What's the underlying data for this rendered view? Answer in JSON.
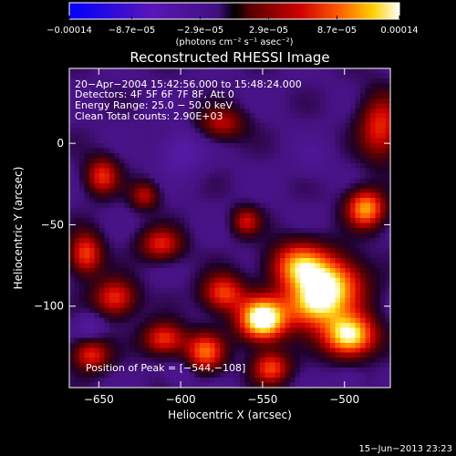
{
  "chart_data": {
    "type": "heatmap",
    "title": "Reconstructed RHESSI Image",
    "xlabel": "Heliocentric X (arcsec)",
    "ylabel": "Heliocentric Y (arcsec)",
    "xlim": [
      -668,
      -472
    ],
    "ylim": [
      -150,
      46
    ],
    "xticks": [
      {
        "value": -650,
        "label": "−650"
      },
      {
        "value": -600,
        "label": "−600"
      },
      {
        "value": -550,
        "label": "−550"
      },
      {
        "value": -500,
        "label": "−500"
      }
    ],
    "yticks": [
      {
        "value": 0,
        "label": "0"
      },
      {
        "value": -50,
        "label": "−50"
      },
      {
        "value": -100,
        "label": "−100"
      }
    ],
    "colorbar": {
      "min": -0.00014,
      "max": 0.00014,
      "unit_label": "(photons cm⁻² s⁻¹ asec⁻²)",
      "ticks": [
        {
          "value": -0.00014,
          "label": "−0.00014"
        },
        {
          "value": -8.7e-05,
          "label": "−8.7e−05"
        },
        {
          "value": -2.9e-05,
          "label": "−2.9e−05"
        },
        {
          "value": 2.9e-05,
          "label": "2.9e−05"
        },
        {
          "value": 8.7e-05,
          "label": "8.7e−05"
        },
        {
          "value": 0.00014,
          "label": "0.00014"
        }
      ]
    },
    "info_lines": [
      "20−Apr−2004 15:42:56.000 to 15:48:24.000",
      "Detectors: 4F 5F 6F 7F 8F, Att 0",
      "Energy Range: 25.0 − 50.0 keV",
      "Clean    Total counts: 2.90E+03"
    ],
    "peak_label": "Position of Peak = [−544,−108]",
    "peak": {
      "x": -544,
      "y": -108
    },
    "blobs": [
      {
        "x": -550,
        "y": -108,
        "sx": 10,
        "sy": 9,
        "a": 1.2
      },
      {
        "x": -497,
        "y": -118,
        "sx": 11,
        "sy": 9,
        "a": 1.05
      },
      {
        "x": -508,
        "y": -87,
        "sx": 14,
        "sy": 12,
        "a": 0.85
      },
      {
        "x": -528,
        "y": -75,
        "sx": 12,
        "sy": 10,
        "a": 0.75
      },
      {
        "x": -520,
        "y": -100,
        "sx": 12,
        "sy": 10,
        "a": 0.7
      },
      {
        "x": -574,
        "y": -92,
        "sx": 9,
        "sy": 8,
        "a": 0.62
      },
      {
        "x": -585,
        "y": -128,
        "sx": 8,
        "sy": 8,
        "a": 0.68
      },
      {
        "x": -545,
        "y": -138,
        "sx": 8,
        "sy": 7,
        "a": 0.62
      },
      {
        "x": -610,
        "y": -120,
        "sx": 9,
        "sy": 7,
        "a": 0.6
      },
      {
        "x": -640,
        "y": -95,
        "sx": 9,
        "sy": 8,
        "a": 0.58
      },
      {
        "x": -655,
        "y": -130,
        "sx": 8,
        "sy": 7,
        "a": 0.55
      },
      {
        "x": -658,
        "y": -68,
        "sx": 7,
        "sy": 9,
        "a": 0.62
      },
      {
        "x": -648,
        "y": -20,
        "sx": 7,
        "sy": 8,
        "a": 0.55
      },
      {
        "x": -612,
        "y": -62,
        "sx": 9,
        "sy": 7,
        "a": 0.52
      },
      {
        "x": -622,
        "y": -32,
        "sx": 6,
        "sy": 6,
        "a": 0.42
      },
      {
        "x": -560,
        "y": -48,
        "sx": 6,
        "sy": 6,
        "a": 0.45
      },
      {
        "x": -575,
        "y": 12,
        "sx": 10,
        "sy": 7,
        "a": 0.42
      },
      {
        "x": -487,
        "y": -40,
        "sx": 8,
        "sy": 8,
        "a": 0.82
      },
      {
        "x": -478,
        "y": 10,
        "sx": 9,
        "sy": 14,
        "a": 0.55
      },
      {
        "x": -520,
        "y": -10,
        "sx": 8,
        "sy": 8,
        "a": -0.1
      },
      {
        "x": -600,
        "y": -5,
        "sx": 10,
        "sy": 10,
        "a": -0.25
      },
      {
        "x": -655,
        "y": -112,
        "sx": 6,
        "sy": 6,
        "a": -0.2
      },
      {
        "x": -600,
        "y": -142,
        "sx": 6,
        "sy": 5,
        "a": -0.15
      },
      {
        "x": -498,
        "y": -146,
        "sx": 6,
        "sy": 5,
        "a": -0.15
      }
    ]
  },
  "timestamp": "15−Jun−2013 23:23"
}
